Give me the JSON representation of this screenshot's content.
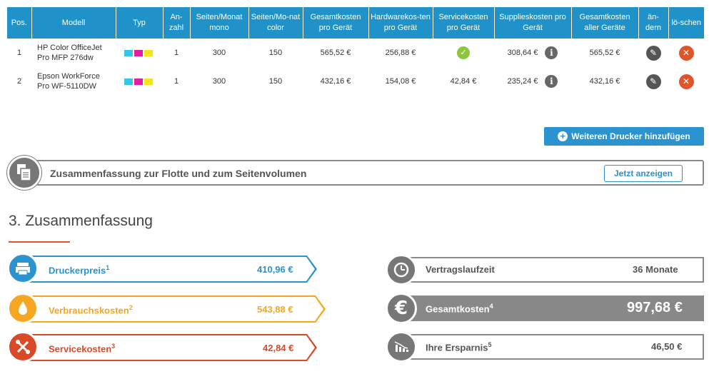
{
  "table": {
    "headers": [
      "Pos.",
      "Modell",
      "Typ",
      "An-zahl",
      "Seiten/Monat mono",
      "Seiten/Mo-nat color",
      "Gesamtkosten pro Gerät",
      "Hardwarekos-ten pro Gerät",
      "Servicekosten pro Gerät",
      "Supplieskosten pro Gerät",
      "Gesamtkosten aller Geräte",
      "än-dern",
      "lö-schen"
    ],
    "rows": [
      {
        "pos": "1",
        "model": "HP Color OfficeJet Pro MFP 276dw",
        "quantity": "1",
        "pages_mono": "300",
        "pages_color": "150",
        "total_per_device": "565,52 €",
        "hardware_per_device": "256,88 €",
        "service_per_device": "",
        "service_included": true,
        "supplies_per_device": "308,64 €",
        "total_all_devices": "565,52 €"
      },
      {
        "pos": "2",
        "model": "Epson WorkForce Pro WF-5110DW",
        "quantity": "1",
        "pages_mono": "300",
        "pages_color": "150",
        "total_per_device": "432,16 €",
        "hardware_per_device": "154,08 €",
        "service_per_device": "42,84 €",
        "service_included": false,
        "supplies_per_device": "235,24 €",
        "total_all_devices": "432,16 €"
      }
    ],
    "ink_colors": [
      "#35c6e8",
      "#e01ea0",
      "#f3e51a"
    ],
    "info_glyph": "i",
    "check_glyph": "✓",
    "edit_glyph": "✎",
    "delete_glyph": "✕"
  },
  "add_printer_label": "Weiteren Drucker hinzufügen",
  "fleet_bar": {
    "label": "Zusammenfassung zur Flotte und zum Seitenvolumen",
    "button_label": "Jetzt anzeigen"
  },
  "section_title": "3. Zusammenfassung",
  "summary_left": [
    {
      "label": "Druckerpreis",
      "footnote": "1",
      "value": "410,96 €",
      "color": "#2a93d0",
      "icon": "printer-icon"
    },
    {
      "label": "Verbrauchskosten",
      "footnote": "2",
      "value": "543,88 €",
      "color": "#f5a623",
      "icon": "drop-icon"
    },
    {
      "label": "Servicekosten",
      "footnote": "3",
      "value": "42,84 €",
      "color": "#d94a28",
      "icon": "tools-icon"
    }
  ],
  "summary_right": [
    {
      "label": "Vertragslaufzeit",
      "footnote": "",
      "value": "36 Monate",
      "icon": "clock-icon"
    },
    {
      "label": "Gesamtkosten",
      "footnote": "4",
      "value": "997,68 €",
      "icon": "euro-icon"
    },
    {
      "label": "Ihre Ersparnis",
      "footnote": "5",
      "value": "46,50 €",
      "icon": "chart-down-icon"
    }
  ]
}
